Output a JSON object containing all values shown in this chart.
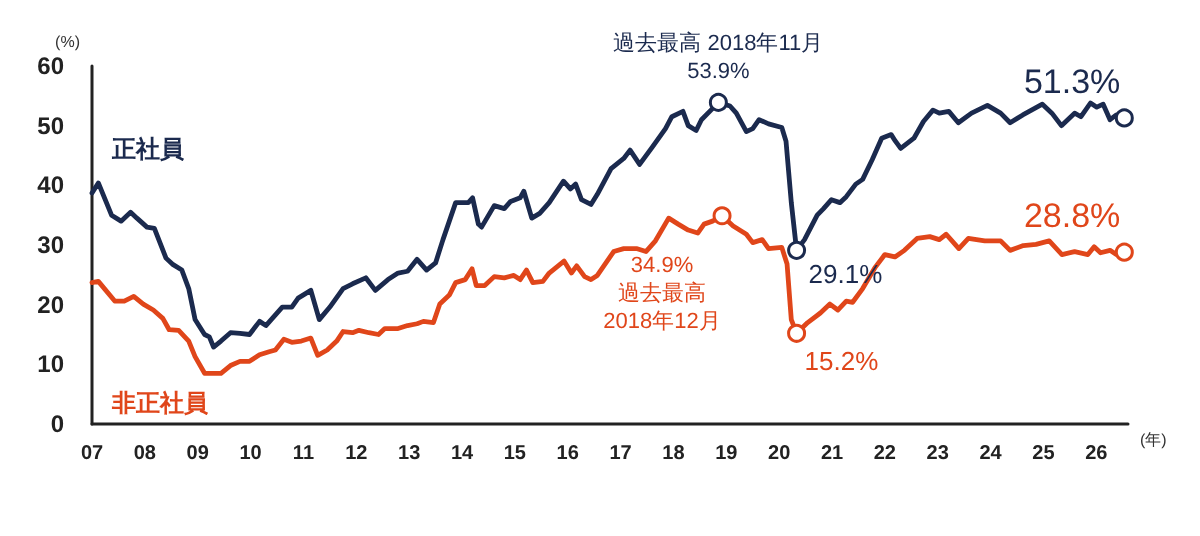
{
  "chart_data": {
    "type": "line",
    "xlabel": "(年)",
    "ylabel": "(%)",
    "xlim": [
      2007,
      2026.6
    ],
    "ylim": [
      0,
      60
    ],
    "xticks": [
      {
        "value": 2007,
        "label": "07"
      },
      {
        "value": 2008,
        "label": "08"
      },
      {
        "value": 2009,
        "label": "09"
      },
      {
        "value": 2010,
        "label": "10"
      },
      {
        "value": 2011,
        "label": "11"
      },
      {
        "value": 2012,
        "label": "12"
      },
      {
        "value": 2013,
        "label": "13"
      },
      {
        "value": 2014,
        "label": "14"
      },
      {
        "value": 2015,
        "label": "15"
      },
      {
        "value": 2016,
        "label": "16"
      },
      {
        "value": 2017,
        "label": "17"
      },
      {
        "value": 2018,
        "label": "18"
      },
      {
        "value": 2019,
        "label": "19"
      },
      {
        "value": 2020,
        "label": "20"
      },
      {
        "value": 2021,
        "label": "21"
      },
      {
        "value": 2022,
        "label": "22"
      },
      {
        "value": 2023,
        "label": "23"
      },
      {
        "value": 2024,
        "label": "24"
      },
      {
        "value": 2025,
        "label": "25"
      },
      {
        "value": 2026,
        "label": "26"
      }
    ],
    "yticks": [
      0,
      10,
      20,
      30,
      40,
      50,
      60
    ],
    "grid": false,
    "legend": false,
    "marker": "none",
    "line_style": "solid",
    "series": [
      {
        "name": "正社員",
        "color": "#1b2a4e",
        "x": [
          2007,
          2007.12,
          2007.37,
          2007.55,
          2007.73,
          2007.85,
          2008.04,
          2008.18,
          2008.4,
          2008.52,
          2008.7,
          2008.83,
          2008.95,
          2009.13,
          2009.22,
          2009.3,
          2009.44,
          2009.62,
          2009.8,
          2009.98,
          2010.17,
          2010.29,
          2010.6,
          2010.78,
          2010.9,
          2011.14,
          2011.3,
          2011.5,
          2011.75,
          2011.93,
          2012.18,
          2012.36,
          2012.6,
          2012.79,
          2012.97,
          2013.15,
          2013.33,
          2013.5,
          2013.64,
          2013.88,
          2014.12,
          2014.2,
          2014.31,
          2014.37,
          2014.61,
          2014.8,
          2014.92,
          2015.1,
          2015.17,
          2015.32,
          2015.47,
          2015.65,
          2015.92,
          2016.05,
          2016.15,
          2016.26,
          2016.44,
          2016.56,
          2016.82,
          2017.06,
          2017.18,
          2017.36,
          2017.6,
          2017.85,
          2017.97,
          2018.18,
          2018.28,
          2018.43,
          2018.53,
          2018.71,
          2018.85,
          2019.07,
          2019.19,
          2019.38,
          2019.5,
          2019.62,
          2019.8,
          2020.05,
          2020.13,
          2020.23,
          2020.33,
          2020.48,
          2020.72,
          2020.84,
          2020.99,
          2021.15,
          2021.27,
          2021.45,
          2021.58,
          2021.76,
          2021.94,
          2022.12,
          2022.2,
          2022.3,
          2022.55,
          2022.73,
          2022.91,
          2023.03,
          2023.21,
          2023.39,
          2023.64,
          2023.94,
          2024.19,
          2024.37,
          2024.61,
          2024.98,
          2025.16,
          2025.34,
          2025.59,
          2025.71,
          2025.89,
          2026.01,
          2026.13,
          2026.26,
          2026.38,
          2026.53
        ],
        "values": [
          38.7,
          40.4,
          35,
          34,
          35.5,
          34.5,
          33,
          32.8,
          27.8,
          26.8,
          25.8,
          22.7,
          17.5,
          15,
          14.6,
          12.9,
          13.9,
          15.3,
          15.2,
          15,
          17.2,
          16.5,
          19.6,
          19.6,
          21.1,
          22.4,
          17.5,
          19.6,
          22.7,
          23.5,
          24.5,
          22.4,
          24.2,
          25.3,
          25.6,
          27.6,
          25.8,
          27,
          30.9,
          37.1,
          37.1,
          37.9,
          33.5,
          33,
          36.6,
          36.1,
          37.3,
          37.9,
          39,
          34.5,
          35.3,
          37.1,
          40.7,
          39.4,
          40.2,
          37.6,
          36.8,
          38.5,
          42.8,
          44.5,
          45.9,
          43.5,
          46.4,
          49.5,
          51.5,
          52.4,
          50,
          49.2,
          51,
          52.6,
          53.9,
          53.3,
          52.1,
          49,
          49.5,
          51,
          50.3,
          49.7,
          47.4,
          37.1,
          29.1,
          30.9,
          35,
          36.1,
          37.6,
          37.1,
          38.1,
          40.2,
          41,
          44.3,
          47.9,
          48.5,
          47.4,
          46.2,
          47.9,
          50.7,
          52.6,
          52.1,
          52.4,
          50.5,
          52.1,
          53.4,
          52.1,
          50.5,
          51.8,
          53.6,
          52.1,
          50,
          52.1,
          51.5,
          53.8,
          53.1,
          53.6,
          51,
          51.8,
          51.3
        ]
      },
      {
        "name": "非正社員",
        "color": "#e0461a",
        "x": [
          2007,
          2007.12,
          2007.43,
          2007.61,
          2007.79,
          2007.97,
          2008.16,
          2008.34,
          2008.46,
          2008.64,
          2008.83,
          2008.95,
          2009.13,
          2009.44,
          2009.62,
          2009.8,
          2009.98,
          2010.17,
          2010.35,
          2010.47,
          2010.63,
          2010.78,
          2010.96,
          2011.14,
          2011.27,
          2011.45,
          2011.63,
          2011.75,
          2011.93,
          2012.05,
          2012.24,
          2012.42,
          2012.54,
          2012.79,
          2012.97,
          2013.15,
          2013.27,
          2013.46,
          2013.58,
          2013.76,
          2013.88,
          2014.06,
          2014.19,
          2014.27,
          2014.43,
          2014.61,
          2014.8,
          2014.98,
          2015.1,
          2015.22,
          2015.34,
          2015.53,
          2015.65,
          2015.93,
          2016.07,
          2016.17,
          2016.32,
          2016.44,
          2016.56,
          2016.87,
          2017.06,
          2017.3,
          2017.48,
          2017.66,
          2017.91,
          2018.09,
          2018.28,
          2018.46,
          2018.58,
          2018.74,
          2018.92,
          2019.13,
          2019.38,
          2019.5,
          2019.68,
          2019.8,
          2020.05,
          2020.15,
          2020.23,
          2020.33,
          2020.54,
          2020.78,
          2020.96,
          2021.11,
          2021.27,
          2021.39,
          2021.58,
          2021.82,
          2022,
          2022.19,
          2022.37,
          2022.61,
          2022.85,
          2023.03,
          2023.16,
          2023.4,
          2023.58,
          2023.89,
          2024.19,
          2024.37,
          2024.62,
          2024.86,
          2025.11,
          2025.35,
          2025.59,
          2025.84,
          2025.96,
          2026.08,
          2026.26,
          2026.38,
          2026.53
        ],
        "values": [
          23.7,
          23.9,
          20.6,
          20.6,
          21.4,
          20.1,
          19.1,
          17.7,
          15.8,
          15.7,
          13.9,
          11.3,
          8.5,
          8.5,
          9.8,
          10.5,
          10.5,
          11.6,
          12.1,
          12.4,
          14.2,
          13.7,
          13.9,
          14.4,
          11.5,
          12.4,
          13.9,
          15.5,
          15.3,
          15.7,
          15.3,
          15,
          16,
          16,
          16.5,
          16.8,
          17.2,
          17,
          20.1,
          21.6,
          23.7,
          24.2,
          26,
          23.2,
          23.2,
          24.7,
          24.5,
          24.9,
          24.2,
          25.8,
          23.7,
          23.9,
          25.3,
          27.3,
          25.3,
          26.5,
          24.7,
          24.2,
          24.9,
          28.9,
          29.4,
          29.4,
          28.9,
          30.7,
          34.5,
          33.5,
          32.5,
          32,
          33.5,
          34,
          34.9,
          33.2,
          31.8,
          30.4,
          30.9,
          29.4,
          29.6,
          26.8,
          17.5,
          15.2,
          17,
          18.6,
          20.1,
          19.1,
          20.6,
          20.4,
          22.7,
          26.3,
          28.4,
          28,
          29.1,
          31.1,
          31.4,
          30.9,
          31.8,
          29.4,
          31.1,
          30.7,
          30.7,
          29.1,
          29.9,
          30.1,
          30.7,
          28.4,
          28.9,
          28.4,
          29.7,
          28.7,
          29.1,
          28.4,
          28.8
        ]
      }
    ],
    "annotations": [
      {
        "text": "過去最高 2018年11月\n53.9%",
        "x": 2018.85,
        "y": 53.9
      },
      {
        "text": "34.9%\n過去最高\n2018年12月",
        "x": 2018.92,
        "y": 34.9
      },
      {
        "text": "29.1%",
        "x": 2020.33,
        "y": 29.1
      },
      {
        "text": "15.2%",
        "x": 2020.33,
        "y": 15.2
      },
      {
        "text": "51.3%",
        "x": 2026.53,
        "y": 51.3
      },
      {
        "text": "28.8%",
        "x": 2026.53,
        "y": 28.8
      }
    ]
  }
}
